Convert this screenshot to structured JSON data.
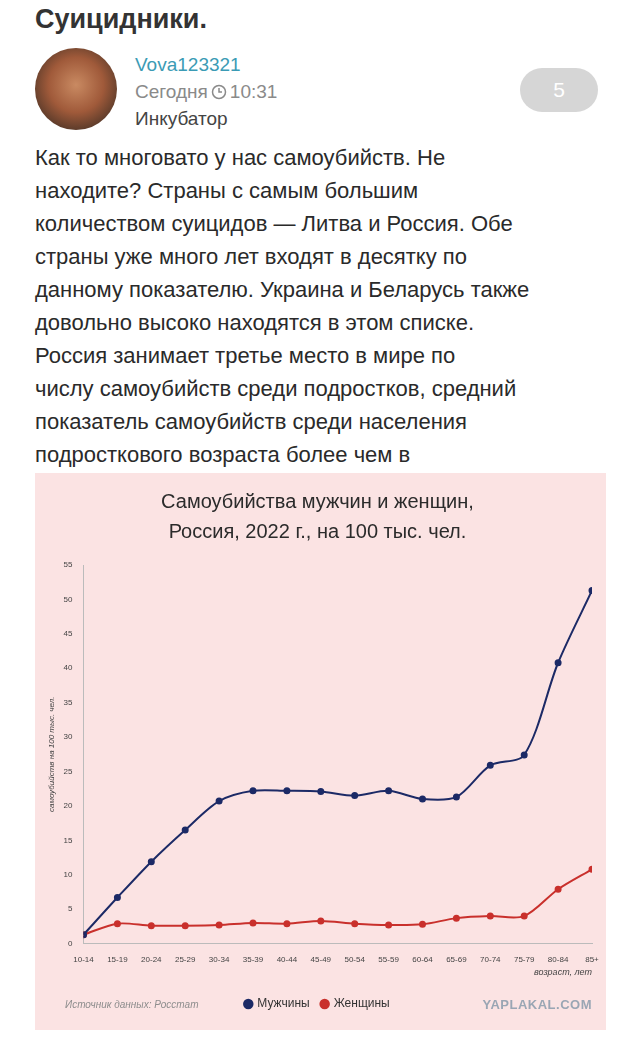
{
  "post": {
    "title": "Суицидники.",
    "author": "Vova123321",
    "date": "Сегодня",
    "time": "10:31",
    "section": "Инкубатор",
    "rating": 5,
    "text_lines": [
      "Как то многовато у нас самоубийств. Не",
      "находите? Страны с самым большим",
      "количеством суицидов — Литва и Россия. Обе",
      "страны уже много лет входят в десятку по",
      "данному показателю. Украина и Беларусь также",
      "довольно высоко находятся в этом списке.",
      "Россия занимает третье место в мире по",
      "числу самоубийств среди подростков, средний",
      "показатель самоубийств среди населения",
      "подросткового возраста более чем в"
    ]
  },
  "chart_data": {
    "type": "line",
    "title": [
      "Самоубийства мужчин и женщин,",
      "Россия, 2022 г., на 100 тыс. чел."
    ],
    "y_label": "самоубийств на 100 тыс. чел.",
    "x_label": "возраст, лет",
    "source": "Источник данных: Росстат",
    "watermark": "YAPLAKAL.COM",
    "categories": [
      "10-14",
      "15-19",
      "20-24",
      "25-29",
      "30-34",
      "35-39",
      "40-44",
      "45-49",
      "50-54",
      "55-59",
      "60-64",
      "65-69",
      "70-74",
      "75-79",
      "80-84",
      "85+"
    ],
    "series": [
      {
        "name": "Мужчины",
        "color": "#1c2a66",
        "marker": "circle",
        "line_style": "solid",
        "values": [
          1.3,
          6.7,
          11.9,
          16.5,
          20.7,
          22.2,
          22.2,
          22.1,
          21.5,
          22.2,
          21.0,
          21.3,
          25.9,
          27.4,
          40.8,
          51.3
        ]
      },
      {
        "name": "Женщины",
        "color": "#c9302c",
        "marker": "circle",
        "line_style": "solid",
        "values": [
          1.3,
          2.9,
          2.6,
          2.6,
          2.7,
          3.0,
          2.9,
          3.3,
          2.9,
          2.7,
          2.8,
          3.7,
          4.0,
          4.0,
          7.9,
          10.8
        ]
      }
    ],
    "ylim": [
      0,
      55
    ],
    "yticks": [
      0,
      5,
      10,
      15,
      20,
      25,
      30,
      35,
      40,
      45,
      50,
      55
    ],
    "grid": false,
    "legend": "bottom"
  }
}
